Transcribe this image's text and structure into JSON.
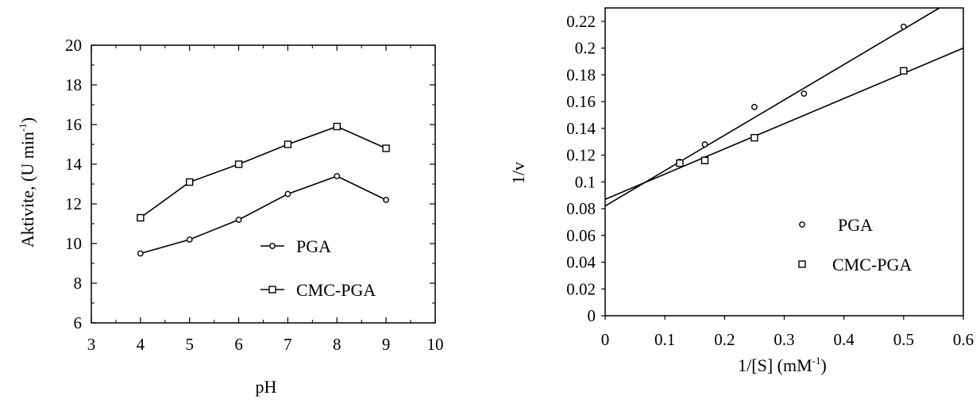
{
  "chart_data": [
    {
      "type": "line",
      "xlabel": "pH",
      "ylabel": "Aktivite, (U min",
      "ylabel_sup": "-1",
      "ylabel_close": ")",
      "xlim": [
        3,
        10
      ],
      "ylim": [
        6,
        20
      ],
      "x_ticks": [
        3,
        4,
        5,
        6,
        7,
        8,
        9,
        10
      ],
      "y_ticks": [
        6,
        8,
        10,
        12,
        14,
        16,
        18,
        20
      ],
      "grid": false,
      "legend_position": "bottom-right",
      "series": [
        {
          "name": "PGA",
          "marker": "circle",
          "x": [
            4,
            5,
            6,
            7,
            8,
            9
          ],
          "y": [
            9.5,
            10.2,
            11.2,
            12.5,
            13.4,
            12.2
          ]
        },
        {
          "name": "CMC-PGA",
          "marker": "square",
          "x": [
            4,
            5,
            6,
            7,
            8,
            9
          ],
          "y": [
            11.3,
            13.1,
            14.0,
            15.0,
            15.9,
            14.8
          ]
        }
      ]
    },
    {
      "type": "scatter",
      "xlabel": "1/[S] (mM",
      "xlabel_sup": "-1",
      "xlabel_close": ")",
      "ylabel": "1/v",
      "xlim": [
        0,
        0.6
      ],
      "ylim": [
        0,
        0.23
      ],
      "x_ticks": [
        "0",
        "0.1",
        "0.2",
        "0.3",
        "0.4",
        "0.5",
        "0.6"
      ],
      "y_ticks": [
        "0",
        "0.02",
        "0.04",
        "0.06",
        "0.08",
        "0.1",
        "0.12",
        "0.14",
        "0.16",
        "0.18",
        "0.2",
        "0.22"
      ],
      "grid": false,
      "legend_position": "center-right",
      "series": [
        {
          "name": "PGA",
          "marker": "circle",
          "x": [
            0.125,
            0.167,
            0.25,
            0.333,
            0.5
          ],
          "y": [
            0.115,
            0.128,
            0.156,
            0.166,
            0.216
          ],
          "fit_line": [
            [
              0,
              0.082
            ],
            [
              0.56,
              0.23
            ]
          ]
        },
        {
          "name": "CMC-PGA",
          "marker": "square",
          "x": [
            0.125,
            0.167,
            0.25,
            0.5
          ],
          "y": [
            0.114,
            0.116,
            0.133,
            0.183
          ],
          "fit_line": [
            [
              0,
              0.087
            ],
            [
              0.6,
              0.2
            ]
          ]
        }
      ]
    }
  ]
}
